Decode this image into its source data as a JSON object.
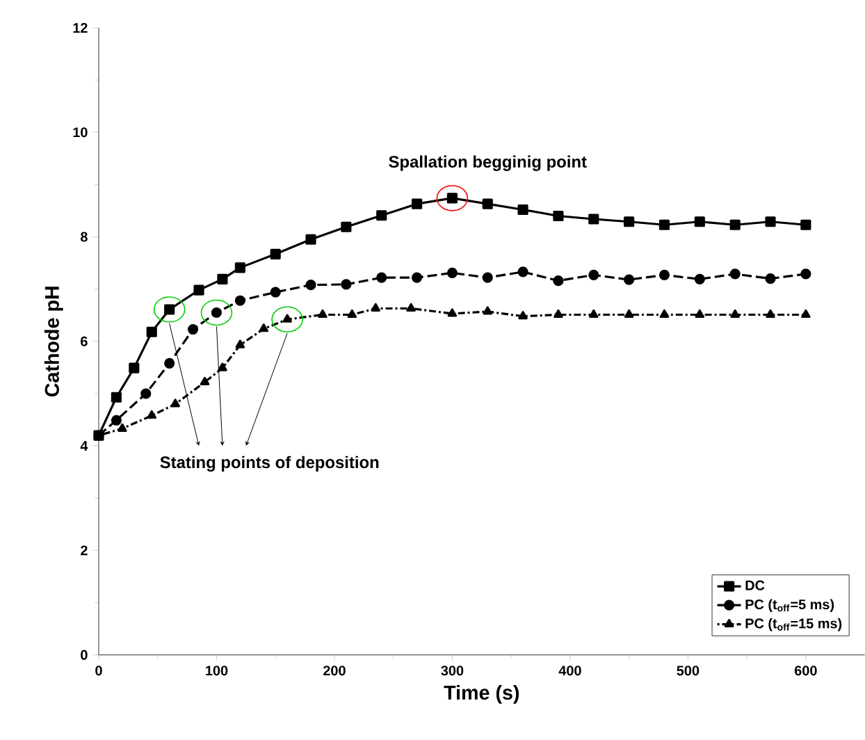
{
  "chart_data": {
    "type": "line",
    "xlabel": "Time (s)",
    "ylabel": "Cathode pH",
    "xlim": [
      0,
      650
    ],
    "xticks": [
      0,
      100,
      200,
      300,
      400,
      500,
      600
    ],
    "ylim": [
      0,
      12
    ],
    "yticks": [
      0,
      2,
      4,
      6,
      8,
      10,
      12
    ],
    "legend": "bottom right",
    "grid": false,
    "series": [
      {
        "name": "DC",
        "color": "#000000",
        "marker": "square",
        "line_style": "solid",
        "x": [
          0,
          15,
          30,
          45,
          60,
          85,
          105,
          120,
          150,
          180,
          210,
          240,
          270,
          300,
          330,
          360,
          390,
          420,
          450,
          480,
          510,
          540,
          570,
          600
        ],
        "values": [
          4.2,
          4.93,
          5.49,
          6.18,
          6.61,
          6.98,
          7.19,
          7.41,
          7.67,
          7.95,
          8.19,
          8.41,
          8.63,
          8.74,
          8.63,
          8.52,
          8.4,
          8.34,
          8.29,
          8.23,
          8.29,
          8.23,
          8.29,
          8.23
        ]
      },
      {
        "name": "PC (t$_{off}$=5 ms)",
        "color": "#000000",
        "marker": "circle",
        "line_style": "dashed",
        "x": [
          0,
          15,
          40,
          60,
          80,
          100,
          120,
          150,
          180,
          210,
          240,
          270,
          300,
          330,
          360,
          390,
          420,
          450,
          480,
          510,
          540,
          570,
          600
        ],
        "values": [
          4.2,
          4.49,
          5.0,
          5.58,
          6.23,
          6.55,
          6.78,
          6.94,
          7.08,
          7.09,
          7.22,
          7.22,
          7.31,
          7.22,
          7.33,
          7.16,
          7.27,
          7.18,
          7.27,
          7.19,
          7.29,
          7.2,
          7.29
        ]
      },
      {
        "name": "PC (t$_{off}$=15 ms)",
        "color": "#000000",
        "marker": "triangle",
        "line_style": "dotted",
        "x": [
          0,
          20,
          45,
          65,
          90,
          105,
          120,
          140,
          160,
          190,
          215,
          235,
          265,
          300,
          330,
          360,
          390,
          420,
          450,
          480,
          510,
          540,
          570,
          600
        ],
        "values": [
          4.2,
          4.33,
          4.58,
          4.8,
          5.22,
          5.49,
          5.93,
          6.24,
          6.42,
          6.51,
          6.51,
          6.63,
          6.63,
          6.53,
          6.57,
          6.48,
          6.51,
          6.51,
          6.51,
          6.51,
          6.51,
          6.51,
          6.51,
          6.51
        ]
      }
    ],
    "annotations": [
      {
        "text": "Spallation begginig point",
        "x": 300,
        "y": 8.74
      },
      "Stating points of deposition"
    ]
  }
}
